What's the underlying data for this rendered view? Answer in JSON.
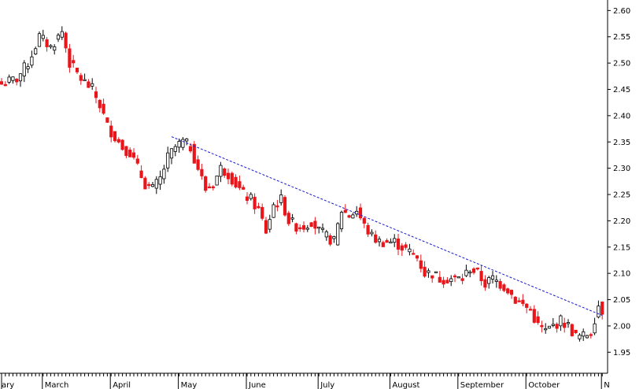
{
  "chart_data": {
    "type": "candlestick",
    "title": "",
    "xlabel": "",
    "ylabel": "",
    "ylim": [
      1.91,
      2.62
    ],
    "y_ticks": [
      "2.60",
      "2.55",
      "2.50",
      "2.45",
      "2.40",
      "2.35",
      "2.30",
      "2.25",
      "2.20",
      "2.15",
      "2.10",
      "2.05",
      "2.00",
      "1.95"
    ],
    "x_month_labels": [
      "ary",
      "March",
      "April",
      "May",
      "June",
      "July",
      "August",
      "September",
      "October",
      "N"
    ],
    "grid": false,
    "colors": {
      "up": "#ffffff",
      "down": "#e8161b",
      "outline": "#000000",
      "trendline": "#1a1acc"
    },
    "trendline": {
      "start": {
        "month": "April",
        "value": 2.36
      },
      "end": {
        "month": "October",
        "value": 2.02
      }
    },
    "close_path": [
      [
        0,
        2.46
      ],
      [
        4,
        2.47
      ],
      [
        7,
        2.5
      ],
      [
        10,
        2.55
      ],
      [
        13,
        2.53
      ],
      [
        16,
        2.56
      ],
      [
        18,
        2.5
      ],
      [
        21,
        2.47
      ],
      [
        24,
        2.45
      ],
      [
        26,
        2.42
      ],
      [
        28,
        2.38
      ],
      [
        30,
        2.36
      ],
      [
        32,
        2.34
      ],
      [
        34,
        2.33
      ],
      [
        36,
        2.3
      ],
      [
        38,
        2.27
      ],
      [
        40,
        2.26
      ],
      [
        42,
        2.28
      ],
      [
        44,
        2.32
      ],
      [
        46,
        2.34
      ],
      [
        48,
        2.35
      ],
      [
        50,
        2.34
      ],
      [
        52,
        2.3
      ],
      [
        54,
        2.26
      ],
      [
        56,
        2.27
      ],
      [
        58,
        2.3
      ],
      [
        60,
        2.29
      ],
      [
        62,
        2.27
      ],
      [
        64,
        2.25
      ],
      [
        66,
        2.24
      ],
      [
        68,
        2.22
      ],
      [
        70,
        2.18
      ],
      [
        72,
        2.23
      ],
      [
        74,
        2.24
      ],
      [
        76,
        2.2
      ],
      [
        78,
        2.19
      ],
      [
        80,
        2.19
      ],
      [
        82,
        2.2
      ],
      [
        84,
        2.18
      ],
      [
        86,
        2.17
      ],
      [
        88,
        2.16
      ],
      [
        90,
        2.22
      ],
      [
        92,
        2.21
      ],
      [
        94,
        2.22
      ],
      [
        96,
        2.19
      ],
      [
        98,
        2.17
      ],
      [
        100,
        2.16
      ],
      [
        102,
        2.16
      ],
      [
        104,
        2.16
      ],
      [
        106,
        2.15
      ],
      [
        108,
        2.14
      ],
      [
        110,
        2.13
      ],
      [
        112,
        2.1
      ],
      [
        114,
        2.1
      ],
      [
        116,
        2.09
      ],
      [
        118,
        2.09
      ],
      [
        120,
        2.09
      ],
      [
        122,
        2.09
      ],
      [
        124,
        2.11
      ],
      [
        126,
        2.1
      ],
      [
        128,
        2.08
      ],
      [
        130,
        2.09
      ],
      [
        132,
        2.08
      ],
      [
        134,
        2.07
      ],
      [
        136,
        2.05
      ],
      [
        138,
        2.04
      ],
      [
        140,
        2.03
      ],
      [
        142,
        2.0
      ],
      [
        144,
        1.99
      ],
      [
        146,
        2.0
      ],
      [
        148,
        2.01
      ],
      [
        150,
        2.0
      ],
      [
        152,
        1.98
      ],
      [
        154,
        1.98
      ],
      [
        156,
        1.99
      ],
      [
        158,
        2.04
      ],
      [
        159,
        2.03
      ]
    ]
  }
}
